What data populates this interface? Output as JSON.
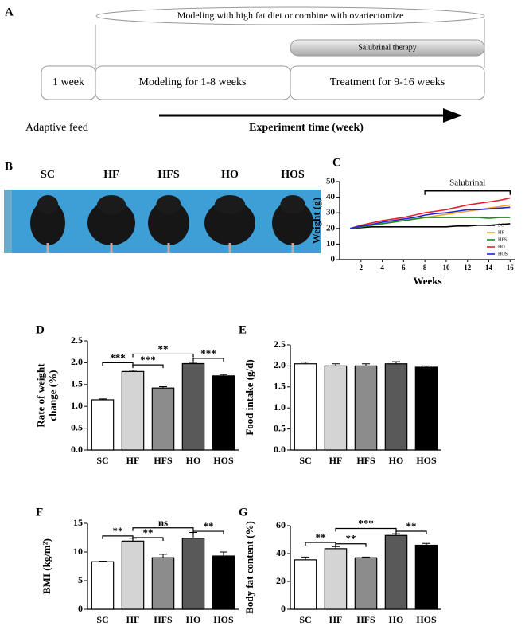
{
  "panel_a": {
    "letter": "A",
    "top_label": "Modeling with high fat diet or combine with ovariectomize",
    "therapy": "Salubrinal therapy",
    "phases": [
      "1 week",
      "Modeling for 1-8 weeks",
      "Treatment for 9-16 weeks"
    ],
    "adaptive": "Adaptive feed",
    "axis": "Experiment time (week)"
  },
  "panel_b": {
    "letter": "B",
    "groups": [
      "SC",
      "HF",
      "HFS",
      "HO",
      "HOS"
    ]
  },
  "chart_data": [
    {
      "type": "line",
      "title": "C",
      "xlabel": "Weeks",
      "ylabel": "Weight (g)",
      "x": [
        1,
        2,
        3,
        4,
        5,
        6,
        7,
        8,
        9,
        10,
        11,
        12,
        13,
        14,
        15,
        16
      ],
      "series": [
        {
          "name": "SC",
          "color": "#000000",
          "values": [
            20,
            20.5,
            21,
            21,
            21,
            21,
            21,
            21,
            21,
            21,
            21.5,
            21.5,
            22,
            22,
            22.5,
            23
          ]
        },
        {
          "name": "HF",
          "color": "#f5a623",
          "values": [
            20,
            21,
            22,
            23,
            24,
            25,
            26,
            27,
            28,
            29,
            30,
            31,
            32,
            33,
            34,
            35
          ]
        },
        {
          "name": "HFS",
          "color": "#1a8a1a",
          "values": [
            20,
            21,
            22,
            23,
            24,
            25,
            26,
            27,
            27,
            27,
            27,
            27,
            27,
            26.5,
            27,
            27
          ]
        },
        {
          "name": "HO",
          "color": "#e8202a",
          "values": [
            20,
            22,
            23.5,
            25,
            26,
            27,
            28.5,
            30,
            31,
            32,
            33.5,
            35,
            36,
            37,
            38,
            39.5
          ]
        },
        {
          "name": "HOS",
          "color": "#2222dd",
          "values": [
            20,
            21.5,
            22.5,
            24,
            25,
            26,
            27,
            28.5,
            29.5,
            30,
            31,
            32,
            32,
            32.5,
            33,
            33.5
          ]
        }
      ],
      "xlim": [
        0,
        16.5
      ],
      "xticks": [
        2,
        4,
        6,
        8,
        10,
        12,
        14,
        16
      ],
      "ylim": [
        0,
        50
      ],
      "yticks": [
        0,
        10,
        20,
        30,
        40,
        50
      ],
      "annotation": {
        "text": "Salubrinal",
        "x": [
          8,
          16
        ],
        "y": 44
      },
      "legend": "bottom-right"
    },
    {
      "type": "bar",
      "title": "D",
      "ylabel": [
        "Rate of weight",
        "change (%)"
      ],
      "categories": [
        "SC",
        "HF",
        "HFS",
        "HO",
        "HOS"
      ],
      "values": [
        1.15,
        1.8,
        1.42,
        1.98,
        1.7
      ],
      "errors": [
        0.02,
        0.03,
        0.03,
        0.03,
        0.03
      ],
      "colors": [
        "#ffffff",
        "#d4d4d4",
        "#8c8c8c",
        "#595959",
        "#000000"
      ],
      "ylim": [
        0,
        2.5
      ],
      "yticks": [
        {
          "value": 0,
          "label": "0.0"
        },
        {
          "value": 0.5,
          "label": "0.5"
        },
        {
          "value": 1,
          "label": "1.0"
        },
        {
          "value": 1.5,
          "label": "1.5"
        },
        {
          "value": 2,
          "label": "2.0"
        },
        {
          "value": 2.5,
          "label": "2.5"
        }
      ],
      "significance": [
        {
          "from": 0,
          "to": 1,
          "y": 2.0,
          "label": "***"
        },
        {
          "from": 1,
          "to": 2,
          "y": 1.95,
          "label": "***"
        },
        {
          "from": 1,
          "to": 3,
          "y": 2.2,
          "label": "**"
        },
        {
          "from": 3,
          "to": 4,
          "y": 2.1,
          "label": "***"
        }
      ]
    },
    {
      "type": "bar",
      "title": "E",
      "ylabel": [
        "Food intake (g/d)"
      ],
      "categories": [
        "SC",
        "HF",
        "HFS",
        "HO",
        "HOS"
      ],
      "values": [
        2.05,
        2.0,
        2.0,
        2.05,
        1.97
      ],
      "errors": [
        0.04,
        0.05,
        0.05,
        0.05,
        0.03
      ],
      "colors": [
        "#ffffff",
        "#d4d4d4",
        "#8c8c8c",
        "#595959",
        "#000000"
      ],
      "ylim": [
        0,
        2.5
      ],
      "yticks": [
        {
          "value": 0,
          "label": "0.0"
        },
        {
          "value": 0.5,
          "label": "0.5"
        },
        {
          "value": 1,
          "label": "1.0"
        },
        {
          "value": 1.5,
          "label": "1.5"
        },
        {
          "value": 2,
          "label": "2.0"
        },
        {
          "value": 2.5,
          "label": "2.5"
        }
      ],
      "significance": []
    },
    {
      "type": "bar",
      "title": "F",
      "ylabel": [
        "BMI (kg/m²)"
      ],
      "categories": [
        "SC",
        "HF",
        "HFS",
        "HO",
        "HOS"
      ],
      "values": [
        8.3,
        11.9,
        9.0,
        12.4,
        9.3
      ],
      "errors": [
        0.1,
        0.5,
        0.6,
        1.0,
        0.7
      ],
      "colors": [
        "#ffffff",
        "#d4d4d4",
        "#8c8c8c",
        "#595959",
        "#000000"
      ],
      "ylim": [
        0,
        15
      ],
      "yticks": [
        0,
        5,
        10,
        15
      ],
      "significance": [
        {
          "from": 0,
          "to": 1,
          "y": 12.8,
          "label": "**"
        },
        {
          "from": 1,
          "to": 2,
          "y": 12.5,
          "label": "**"
        },
        {
          "from": 1,
          "to": 3,
          "y": 14.2,
          "label": "ns"
        },
        {
          "from": 3,
          "to": 4,
          "y": 13.6,
          "label": "**"
        }
      ]
    },
    {
      "type": "bar",
      "title": "G",
      "ylabel": [
        "Body fat content (%)"
      ],
      "categories": [
        "SC",
        "HF",
        "HFS",
        "HO",
        "HOS"
      ],
      "values": [
        35.5,
        43.5,
        37,
        53,
        46
      ],
      "errors": [
        2,
        1.5,
        0.5,
        1.2,
        1.3
      ],
      "colors": [
        "#ffffff",
        "#d4d4d4",
        "#8c8c8c",
        "#595959",
        "#000000"
      ],
      "ylim": [
        0,
        60
      ],
      "yticks": [
        0,
        20,
        40,
        60
      ],
      "significance": [
        {
          "from": 0,
          "to": 1,
          "y": 48,
          "label": "**"
        },
        {
          "from": 1,
          "to": 2,
          "y": 47,
          "label": "**"
        },
        {
          "from": 1,
          "to": 3,
          "y": 58,
          "label": "***"
        },
        {
          "from": 3,
          "to": 4,
          "y": 56,
          "label": "**"
        }
      ]
    }
  ]
}
